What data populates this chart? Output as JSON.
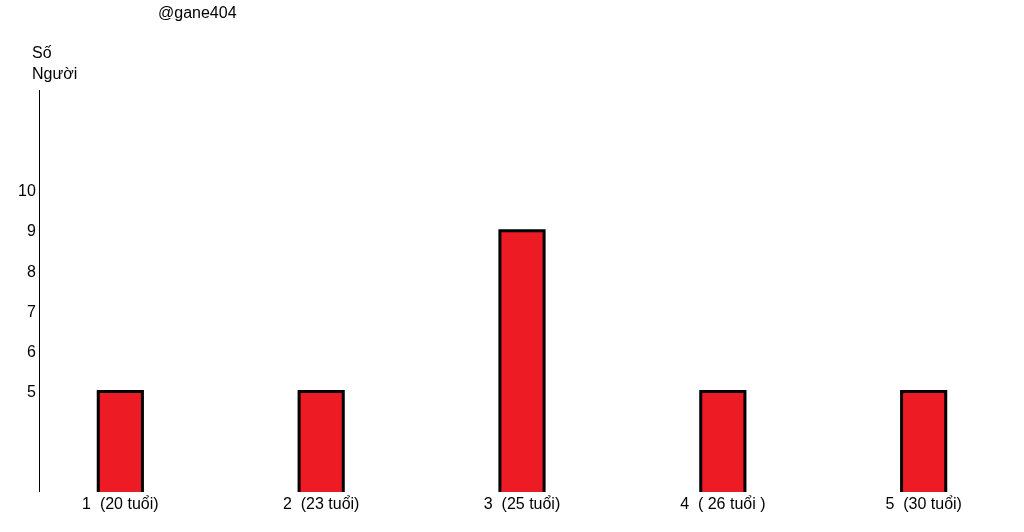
{
  "chart_data": {
    "type": "bar",
    "ylabel": "Số Người",
    "annotations": [
      "@gane404"
    ],
    "categories": [
      "1  (20 tuổi)",
      "2  (23 tuổi)",
      "3  (25 tuổi)",
      "4  ( 26 tuổi )",
      "5  (30 tuổi)"
    ],
    "values": [
      5,
      5,
      9,
      5,
      5
    ],
    "color": "#ed1c24",
    "ylim": [
      2.5,
      12.5
    ],
    "yticks": [
      5,
      6,
      7,
      8,
      9,
      10
    ],
    "grid": false,
    "legend": false
  }
}
